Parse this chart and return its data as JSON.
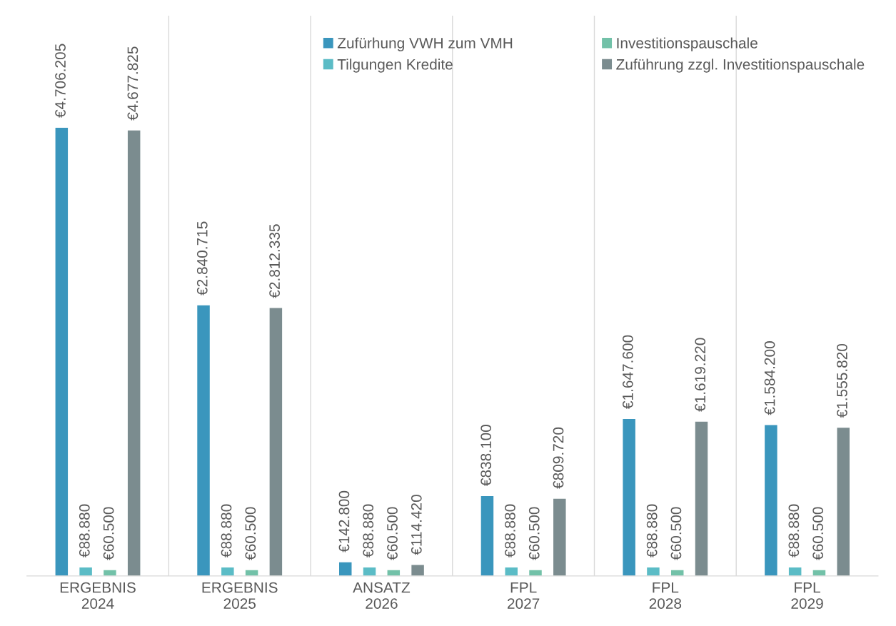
{
  "chart_data": {
    "type": "bar",
    "categories": [
      "ERGEBNIS\n2024",
      "ERGEBNIS\n2025",
      "ANSATZ\n2026",
      "FPL\n2027",
      "FPL\n2028",
      "FPL\n2029"
    ],
    "series": [
      {
        "name": "Zufürhung VWH zum VMH",
        "color": "#3a96bd",
        "values": [
          4706205,
          2840715,
          142800,
          838100,
          1647600,
          1584200
        ],
        "value_labels": [
          "€4.706.205",
          "€2.840.715",
          "€142.800",
          "€838.100",
          "€1.647.600",
          "€1.584.200"
        ]
      },
      {
        "name": "Tilgungen Kredite",
        "color": "#5bbcc6",
        "values": [
          88880,
          88880,
          88880,
          88880,
          88880,
          88880
        ],
        "value_labels": [
          "€88.880",
          "€88.880",
          "€88.880",
          "€88.880",
          "€88.880",
          "€88.880"
        ]
      },
      {
        "name": "Investitionspauschale",
        "color": "#72c1a8",
        "values": [
          60500,
          60500,
          60500,
          60500,
          60500,
          60500
        ],
        "value_labels": [
          "€60.500",
          "€60.500",
          "€60.500",
          "€60.500",
          "€60.500",
          "€60.500"
        ]
      },
      {
        "name": "Zuführung zzgl. Investitionspauschale",
        "color": "#7b8c8f",
        "values": [
          4677825,
          2812335,
          114420,
          809720,
          1619220,
          1555820
        ],
        "value_labels": [
          "€4.677.825",
          "€2.812.335",
          "€114.420",
          "€809.720",
          "€1.619.220",
          "€1.555.820"
        ]
      }
    ],
    "legend": "top",
    "grid": false
  }
}
